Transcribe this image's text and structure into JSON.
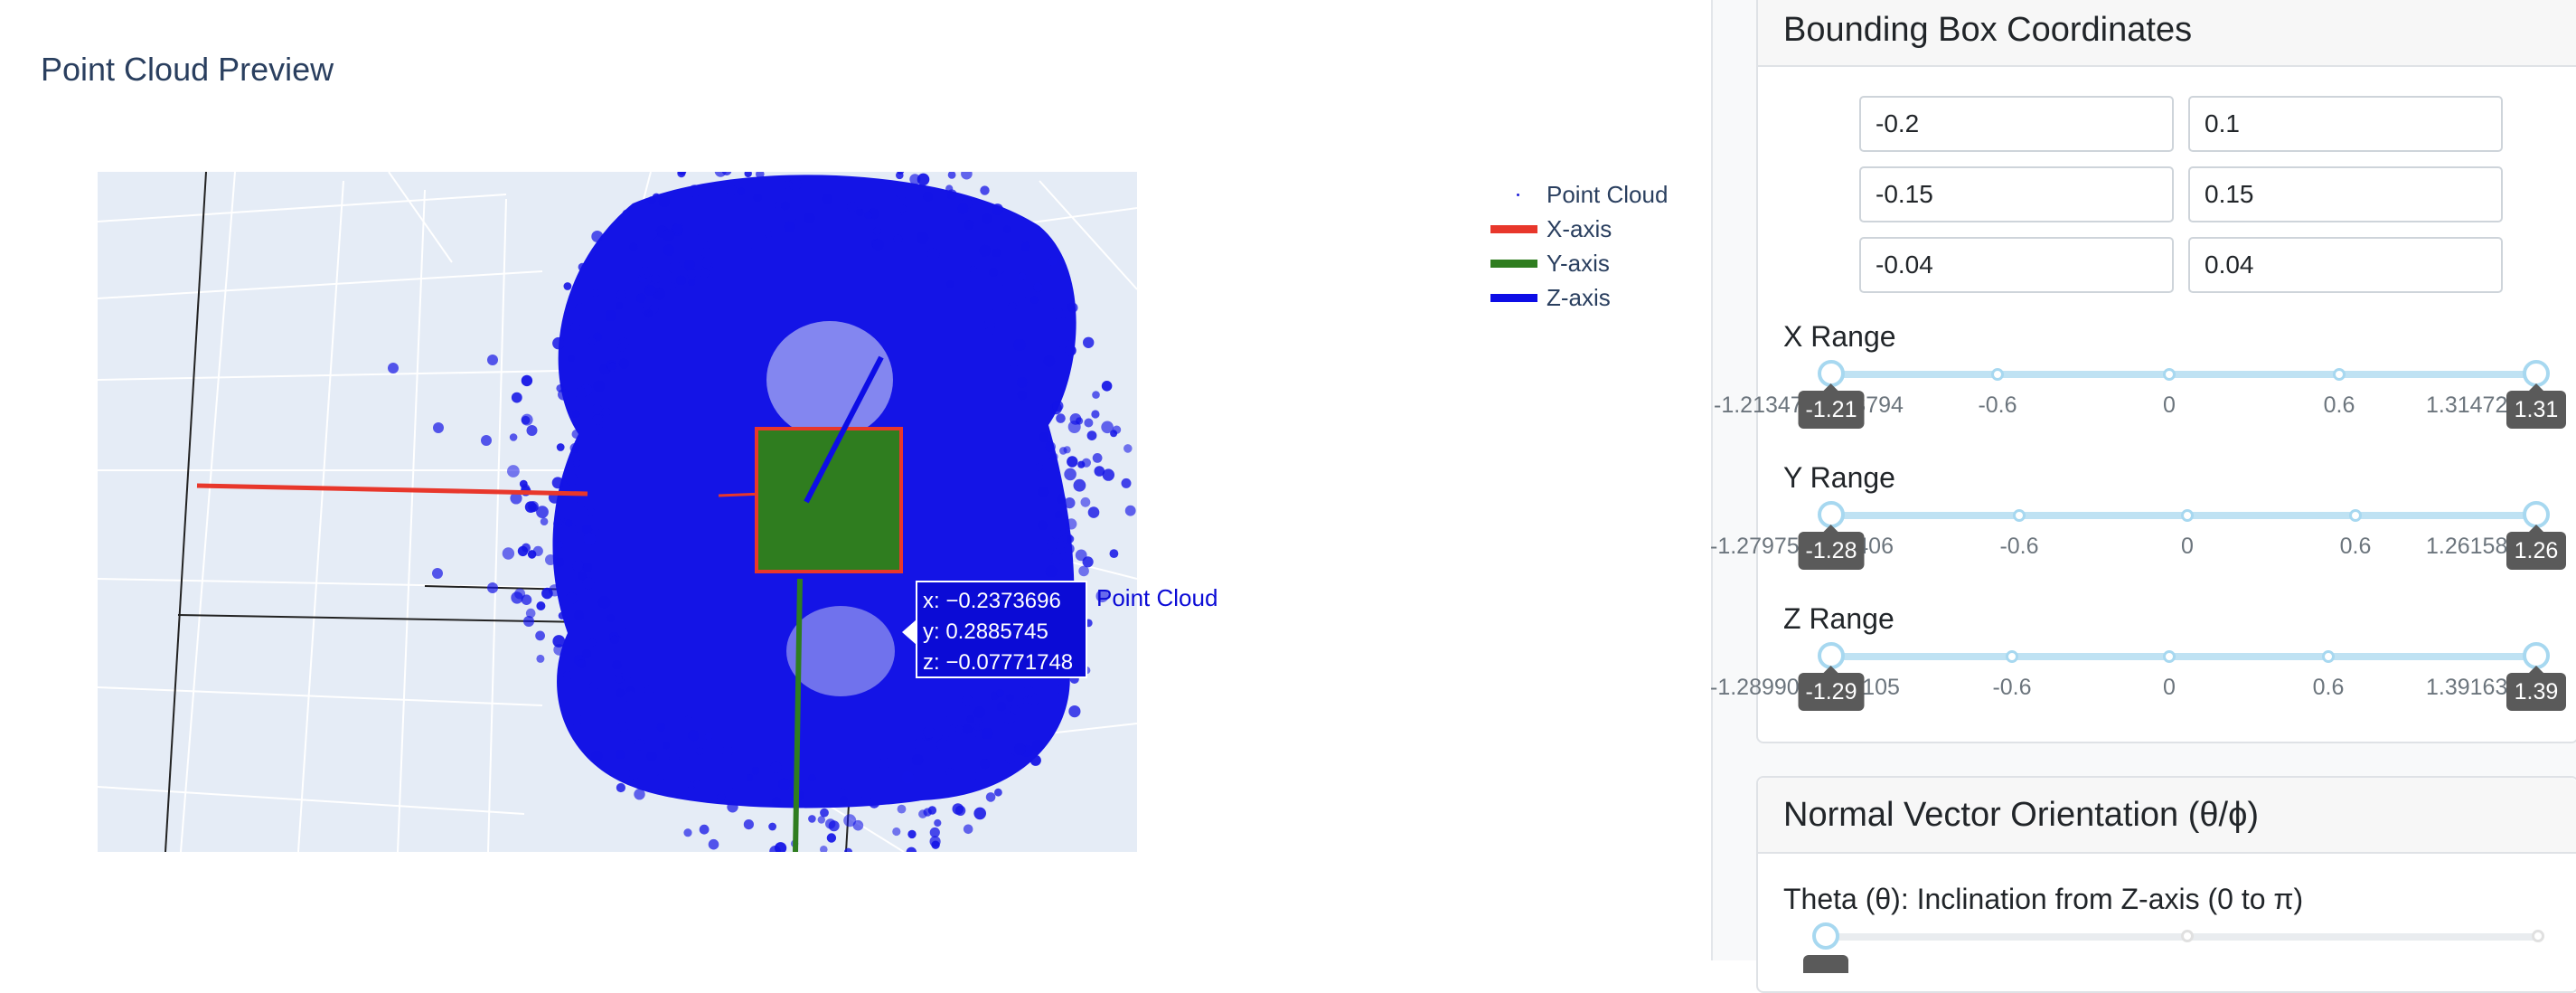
{
  "plot": {
    "title": "Point Cloud Preview",
    "legend": [
      {
        "label": "Point Cloud",
        "color": "#1f1fd8",
        "kind": "marker"
      },
      {
        "label": "X-axis",
        "color": "#e8372b",
        "kind": "line"
      },
      {
        "label": "Y-axis",
        "color": "#2f7d1f",
        "kind": "line"
      },
      {
        "label": "Z-axis",
        "color": "#0d0de6",
        "kind": "line"
      }
    ],
    "hover": {
      "x_text": "x: −0.2373696",
      "y_text": "y: 0.2885745",
      "z_text": "z: −0.07771748",
      "trace_name": "Point Cloud"
    }
  },
  "panel": {
    "bbox_title": "Bounding Box Coordinates",
    "inputs": [
      [
        "-0.2",
        "0.1"
      ],
      [
        "-0.15",
        "0.15"
      ],
      [
        "-0.04",
        "0.04"
      ]
    ],
    "ranges": [
      {
        "label": "X Range",
        "min_mark": "-1.2134719138794",
        "marks": [
          "-0.6",
          "0",
          "0.6"
        ],
        "max_mark": "1.314720",
        "min_badge": "-1.21",
        "max_badge": "1.31"
      },
      {
        "label": "Y Range",
        "min_mark": "-1.27975 3691406",
        "marks": [
          "-0.6",
          "0",
          "0.6"
        ],
        "max_mark": "1.261588",
        "min_badge": "-1.28",
        "max_badge": "1.26"
      },
      {
        "label": "Z Range",
        "min_mark": "-1.2899029558105",
        "marks": [
          "-0.6",
          "0",
          "0.6"
        ],
        "max_mark": "1.391635",
        "min_badge": "-1.29",
        "max_badge": "1.39"
      }
    ],
    "normal_title": "Normal Vector Orientation (θ/ϕ)",
    "theta_label": "Theta (θ): Inclination from Z-axis (0 to π)"
  },
  "colors": {
    "scene_bg": "#e5ecf6",
    "points": "#1414e6",
    "x_axis": "#e8372b",
    "y_axis": "#2f7d1f",
    "z_axis": "#0d0de6",
    "slider": "#a7d8f0"
  }
}
